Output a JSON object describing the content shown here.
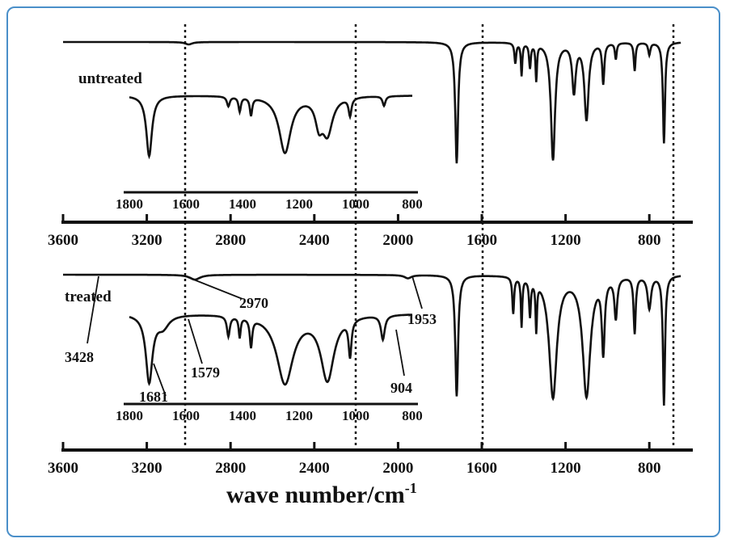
{
  "chart_data": {
    "type": "line",
    "title": "",
    "xlabel": "wave number/cm",
    "xlabel_sup": "-1",
    "frame_color": "#4a8fc9",
    "main_axis": {
      "xlim": [
        3600,
        650
      ],
      "ticks": [
        3600,
        3200,
        2800,
        2400,
        2000,
        1600,
        1200,
        800
      ]
    },
    "inset_axis": {
      "xlim": [
        1800,
        800
      ],
      "ticks": [
        1800,
        1600,
        1400,
        1200,
        1000,
        800
      ]
    },
    "dashed_lines": [
      2970,
      2150,
      1579,
      680
    ],
    "panels": [
      {
        "name": "untreated",
        "label": "untreated",
        "main_peaks": [
          [
            1720,
            150,
            8
          ],
          [
            1440,
            25,
            5
          ],
          [
            1410,
            40,
            4
          ],
          [
            1370,
            30,
            5
          ],
          [
            1340,
            45,
            4
          ],
          [
            1260,
            145,
            12
          ],
          [
            1160,
            60,
            10
          ],
          [
            1100,
            95,
            12
          ],
          [
            1020,
            50,
            6
          ],
          [
            960,
            20,
            5
          ],
          [
            870,
            35,
            5
          ],
          [
            800,
            15,
            6
          ],
          [
            730,
            125,
            6
          ],
          [
            3000,
            3,
            20
          ]
        ],
        "inset_peaks": [
          [
            1730,
            75,
            12
          ],
          [
            1450,
            12,
            6
          ],
          [
            1410,
            18,
            5
          ],
          [
            1370,
            22,
            5
          ],
          [
            1250,
            70,
            25
          ],
          [
            1100,
            45,
            22
          ],
          [
            1020,
            22,
            6
          ],
          [
            900,
            12,
            6
          ],
          [
            1130,
            30,
            15
          ]
        ],
        "annotations": []
      },
      {
        "name": "treated",
        "label": "treated",
        "main_peaks": [
          [
            1720,
            150,
            8
          ],
          [
            1450,
            45,
            5
          ],
          [
            1410,
            60,
            4
          ],
          [
            1370,
            45,
            5
          ],
          [
            1340,
            60,
            4
          ],
          [
            1260,
            150,
            22
          ],
          [
            1100,
            148,
            22
          ],
          [
            1020,
            90,
            8
          ],
          [
            960,
            50,
            8
          ],
          [
            870,
            70,
            6
          ],
          [
            800,
            40,
            10
          ],
          [
            730,
            160,
            6
          ],
          [
            2970,
            6,
            30
          ],
          [
            1953,
            4,
            20
          ]
        ],
        "inset_peaks": [
          [
            1730,
            83,
            14
          ],
          [
            1450,
            25,
            6
          ],
          [
            1410,
            25,
            4
          ],
          [
            1370,
            35,
            5
          ],
          [
            1250,
            85,
            35
          ],
          [
            1100,
            80,
            28
          ],
          [
            1020,
            45,
            6
          ],
          [
            904,
            30,
            8
          ],
          [
            1681,
            15,
            25
          ]
        ],
        "annotations": [
          "2970",
          "1953",
          "3428",
          "1681",
          "1579",
          "904"
        ]
      }
    ]
  }
}
